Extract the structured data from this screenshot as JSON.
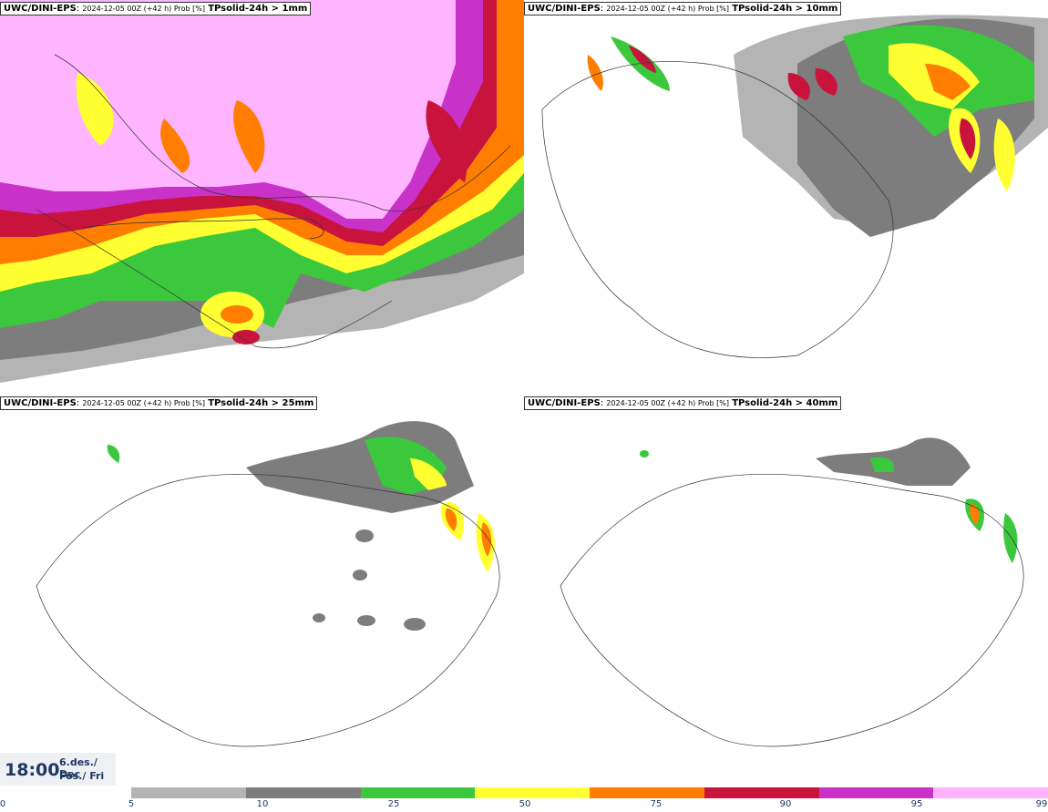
{
  "panels": [
    {
      "model": "UWC/DINI-EPS",
      "run": "2024-12-05 00Z (+42 h) Prob [%]",
      "var": "TPsolid-24h > 1mm"
    },
    {
      "model": "UWC/DINI-EPS",
      "run": "2024-12-05 00Z (+42 h) Prob [%]",
      "var": "TPsolid-24h > 10mm"
    },
    {
      "model": "UWC/DINI-EPS",
      "run": "2024-12-05 00Z (+42 h) Prob [%]",
      "var": "TPsolid-24h > 25mm"
    },
    {
      "model": "UWC/DINI-EPS",
      "run": "2024-12-05 00Z (+42 h) Prob [%]",
      "var": "TPsolid-24h > 40mm"
    }
  ],
  "time": {
    "clock": "18:00",
    "date_line1": "6.des./ Dec",
    "date_line2": "Fös./ Fri"
  },
  "legend": {
    "ticks": [
      "0",
      "5",
      "10",
      "25",
      "50",
      "75",
      "90",
      "95",
      "99"
    ],
    "colors": [
      "#b4b4b4",
      "#7d7d7d",
      "#3cc83c",
      "#ffff32",
      "#ff7d00",
      "#c8143c",
      "#c832c8",
      "#ffb4ff"
    ]
  }
}
